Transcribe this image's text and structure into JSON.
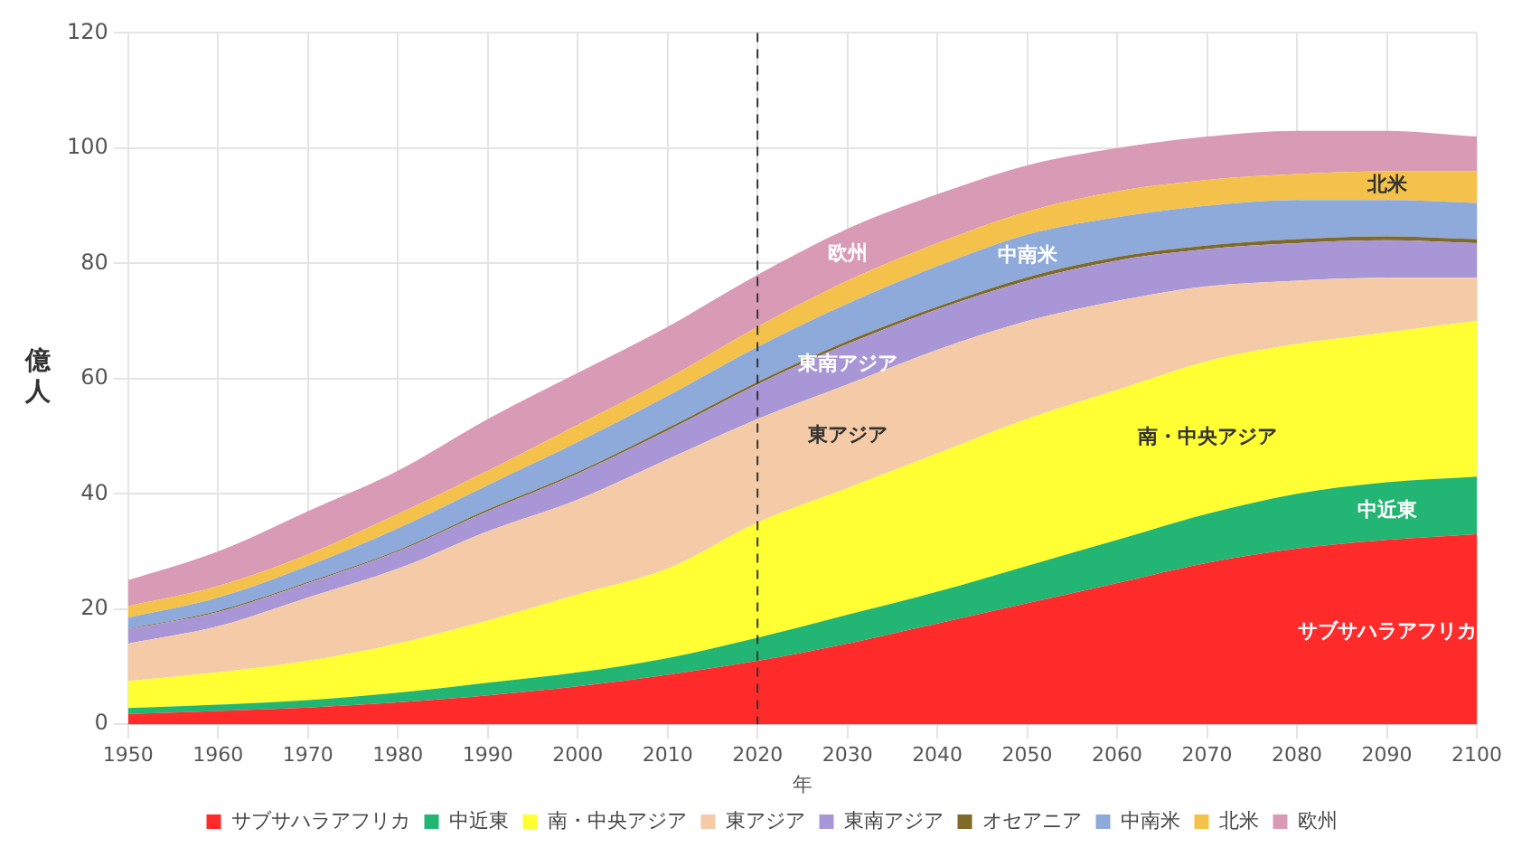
{
  "chart_data": {
    "type": "area",
    "xlabel": "年",
    "ylabel": "億人",
    "stacked": true,
    "grid": true,
    "legend": "bottom",
    "x": [
      1950,
      1960,
      1970,
      1980,
      1990,
      2000,
      2010,
      2020,
      2030,
      2040,
      2050,
      2060,
      2070,
      2080,
      2090,
      2100
    ],
    "xlim": [
      1950,
      2100
    ],
    "xticks": [
      1950,
      1960,
      1970,
      1980,
      1990,
      2000,
      2010,
      2020,
      2030,
      2040,
      2050,
      2060,
      2070,
      2080,
      2090,
      2100
    ],
    "ylim": [
      0,
      120
    ],
    "yticks": [
      0,
      20,
      40,
      60,
      80,
      100,
      120
    ],
    "series": [
      {
        "name": "サブサハラアフリカ",
        "color": "#ff2a2a",
        "values": [
          1.8,
          2.3,
          2.9,
          3.8,
          5.0,
          6.6,
          8.6,
          11,
          14,
          17.5,
          21,
          24.5,
          28,
          30.5,
          32,
          33
        ]
      },
      {
        "name": "中近東",
        "color": "#22b573",
        "values": [
          1.0,
          1.1,
          1.3,
          1.7,
          2.2,
          2.4,
          2.9,
          4,
          5,
          5.5,
          6.5,
          7.5,
          8.5,
          9.5,
          10,
          10
        ]
      },
      {
        "name": "南・中央アジア",
        "color": "#ffff33",
        "values": [
          4.7,
          5.6,
          6.8,
          8.5,
          10.8,
          13.5,
          15.5,
          20,
          22,
          24,
          25.5,
          26,
          26.5,
          26,
          26,
          27
        ]
      },
      {
        "name": "東アジア",
        "color": "#f5cba7",
        "values": [
          6.5,
          8,
          11,
          13,
          15.5,
          16.5,
          19,
          18,
          18,
          18,
          17,
          15.5,
          13,
          11,
          9.5,
          7.5
        ]
      },
      {
        "name": "東南アジア",
        "color": "#a996d6",
        "values": [
          2.5,
          2.5,
          2.5,
          3,
          3.5,
          4.5,
          5,
          6,
          7,
          7,
          7,
          7,
          6.5,
          6.5,
          6.5,
          6
        ]
      },
      {
        "name": "オセアニア",
        "color": "#7f6a2a",
        "values": [
          0.1,
          0.2,
          0.2,
          0.2,
          0.3,
          0.3,
          0.4,
          0.4,
          0.5,
          0.5,
          0.6,
          0.6,
          0.6,
          0.7,
          0.7,
          0.7
        ]
      },
      {
        "name": "中南米",
        "color": "#8eaadb",
        "values": [
          1.9,
          2.3,
          2.8,
          3.8,
          4.2,
          5.2,
          5.6,
          6.1,
          6.5,
          7.0,
          7.4,
          6.9,
          6.9,
          6.8,
          6.3,
          6.3
        ]
      },
      {
        "name": "北米",
        "color": "#f4c24a",
        "values": [
          2,
          2,
          2,
          2.5,
          2.5,
          3,
          3,
          3.5,
          4,
          4,
          4,
          4.5,
          4.5,
          4.5,
          5,
          5.5
        ]
      },
      {
        "name": "欧州",
        "color": "#d99ab5",
        "values": [
          4.5,
          6,
          7.5,
          7.5,
          9,
          9,
          9,
          9,
          9,
          8.5,
          8,
          7.5,
          7.5,
          7.5,
          7,
          6
        ]
      }
    ],
    "ref_lines": [
      {
        "axis": "x",
        "value": 2020,
        "color": "#333333",
        "line_style": "dashed"
      }
    ]
  }
}
